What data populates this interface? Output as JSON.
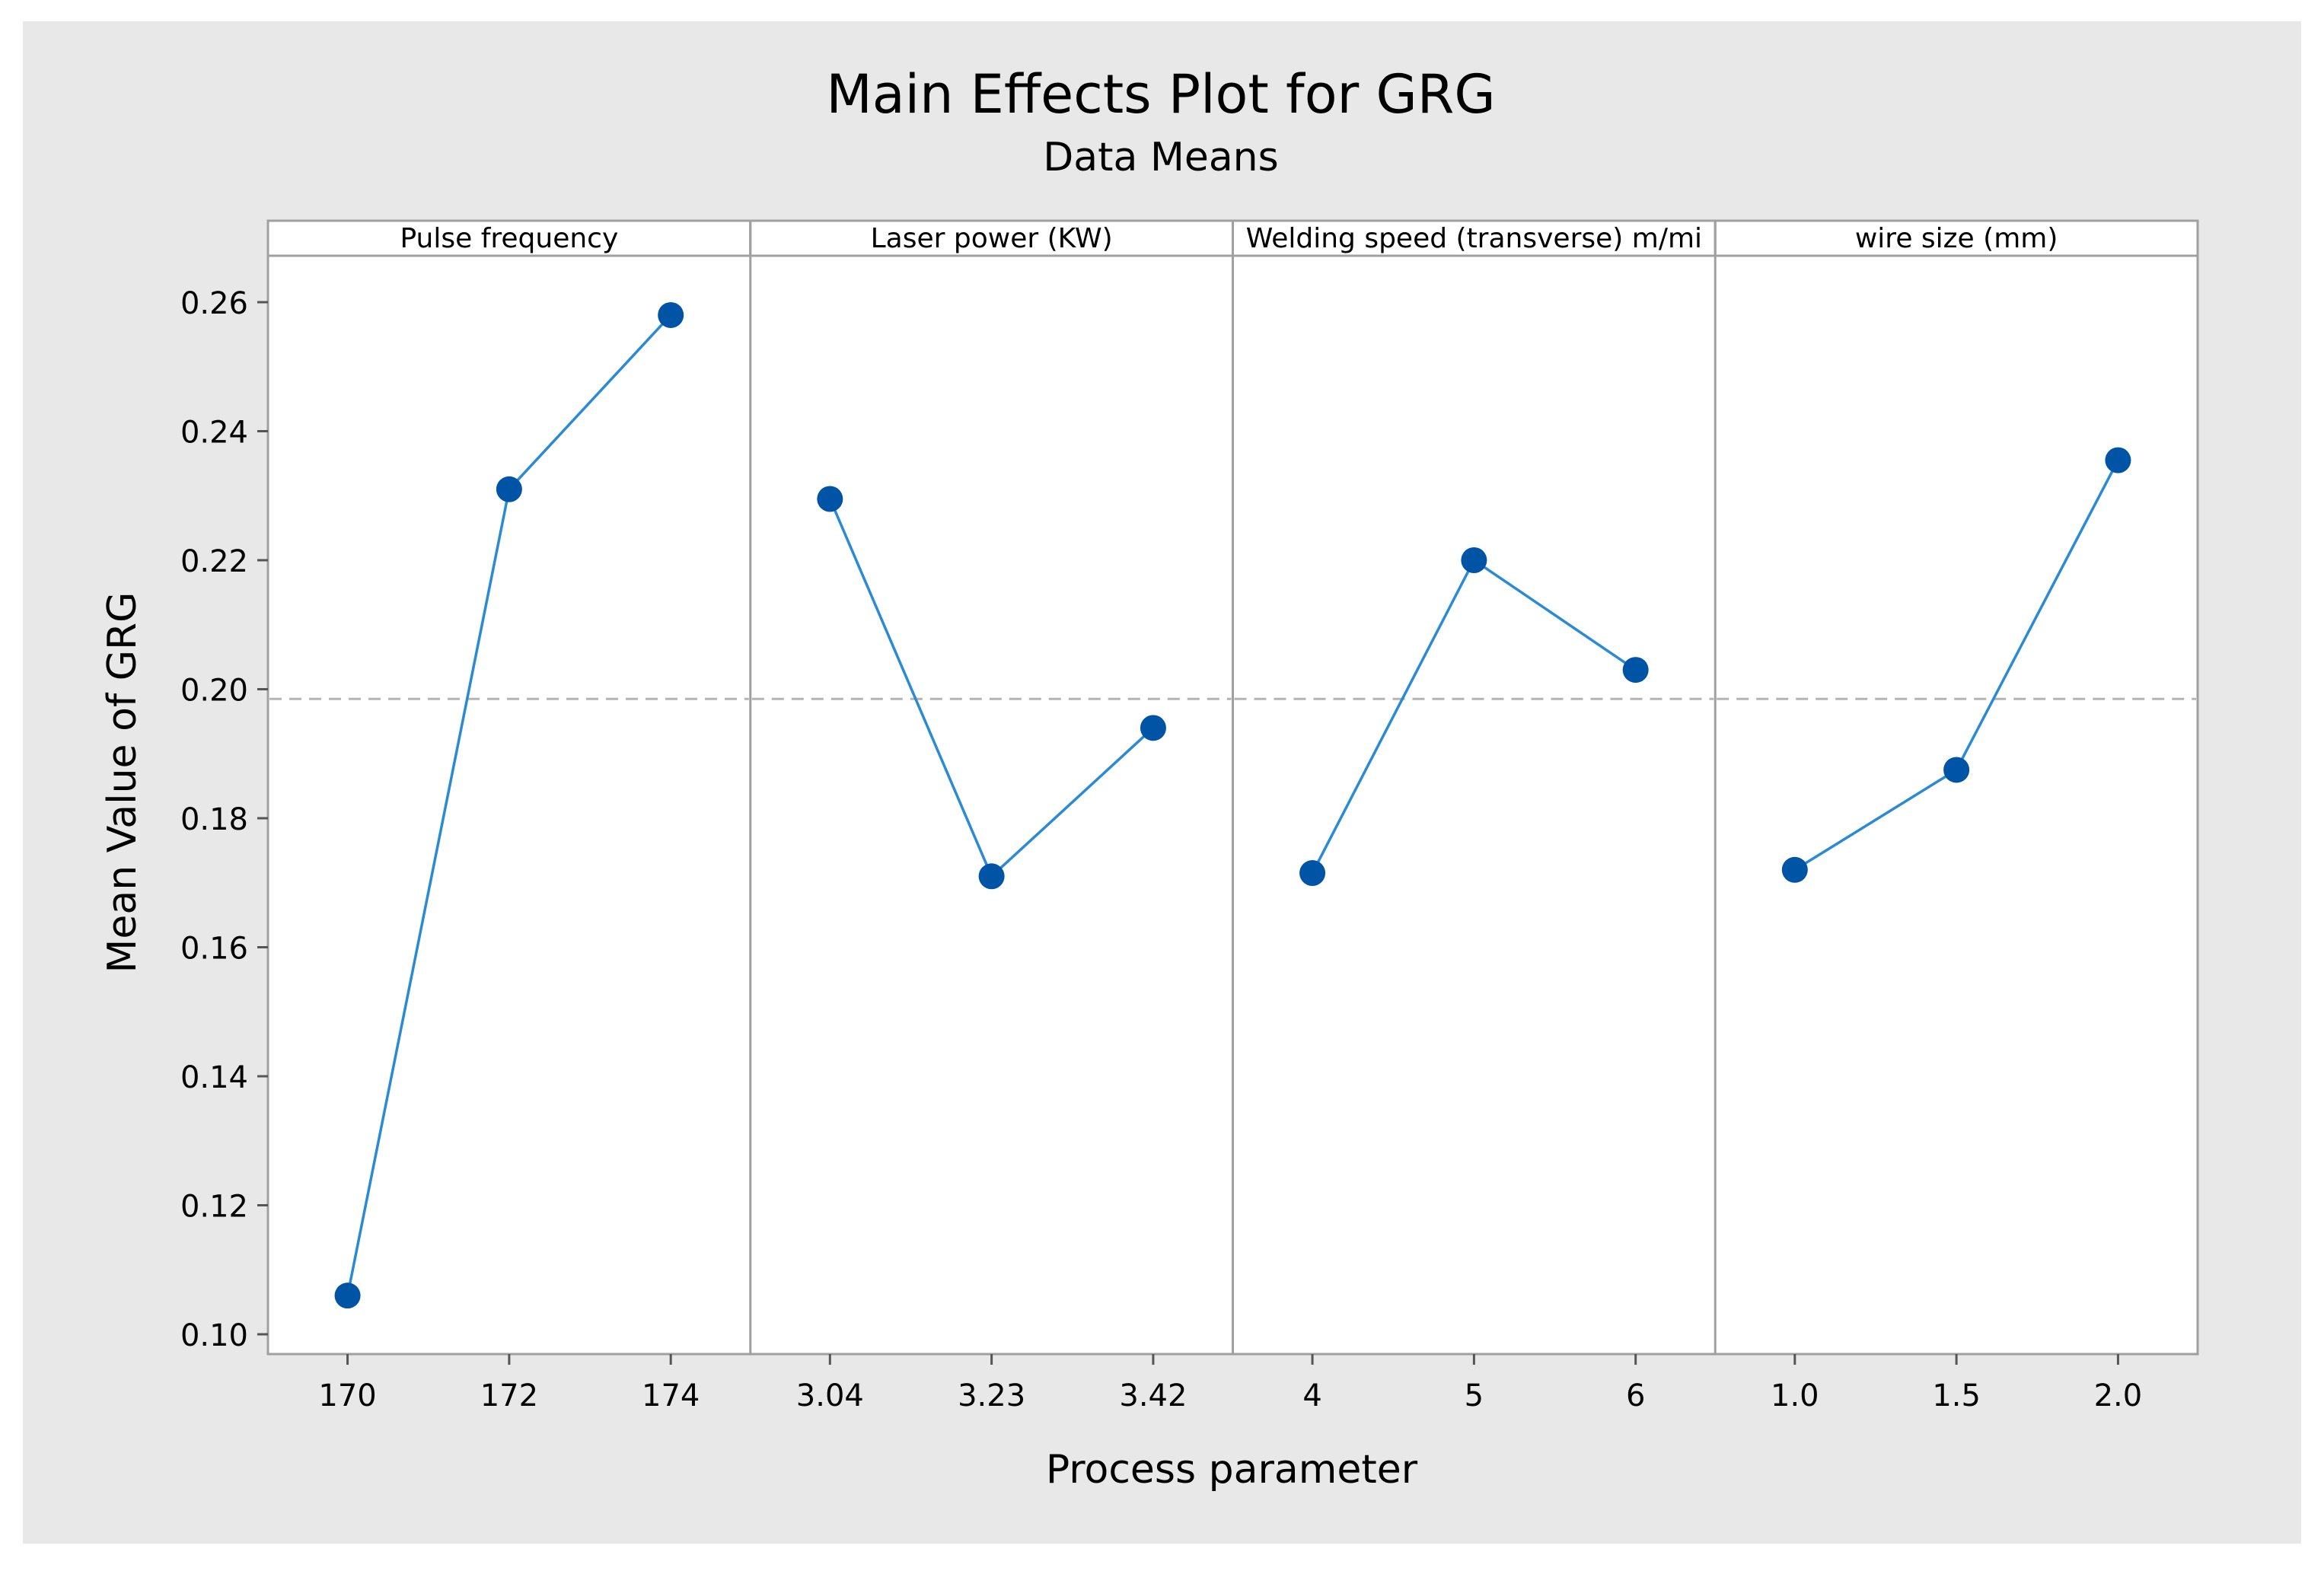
{
  "chart_data": {
    "type": "line",
    "title": "Main Effects Plot for GRG",
    "subtitle": "Data Means",
    "xlabel": "Process parameter",
    "ylabel": "Mean Value of GRG",
    "ylim": [
      0.1,
      0.267
    ],
    "yticks": [
      "0.10",
      "0.12",
      "0.14",
      "0.16",
      "0.18",
      "0.20",
      "0.22",
      "0.24",
      "0.26"
    ],
    "reference_line": 0.1985,
    "grid": false,
    "colors": {
      "background": "#e8e8e8",
      "plot": "#ffffff",
      "series": "#0054a6",
      "line": "#2a8ad4",
      "reference": "#b4b4b4",
      "frame": "#a0a0a0"
    },
    "panels": [
      {
        "name": "Pulse frequency",
        "categories": [
          "170",
          "172",
          "174"
        ],
        "values": [
          0.106,
          0.231,
          0.258
        ]
      },
      {
        "name": "Laser power (KW)",
        "categories": [
          "3.04",
          "3.23",
          "3.42"
        ],
        "values": [
          0.2295,
          0.171,
          0.194
        ]
      },
      {
        "name": "Welding speed (transverse) m/mi",
        "categories": [
          "4",
          "5",
          "6"
        ],
        "values": [
          0.1715,
          0.22,
          0.203
        ]
      },
      {
        "name": "wire size (mm)",
        "categories": [
          "1.0",
          "1.5",
          "2.0"
        ],
        "values": [
          0.172,
          0.1875,
          0.2355
        ]
      }
    ]
  }
}
